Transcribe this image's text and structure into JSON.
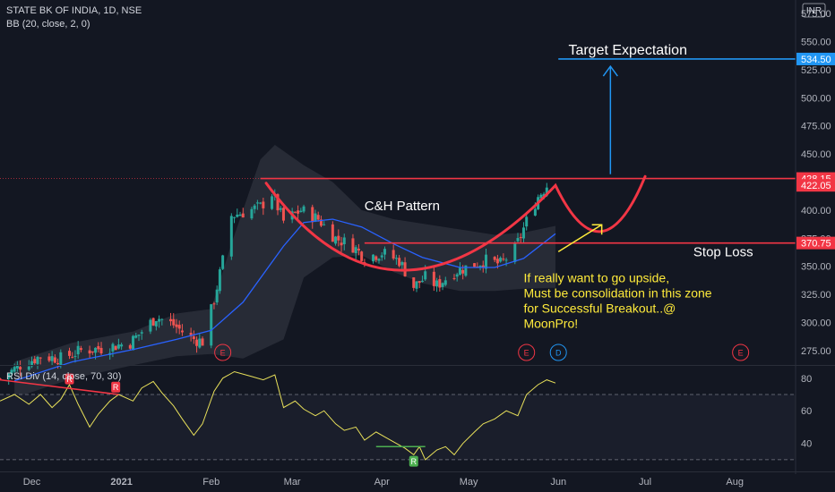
{
  "header": {
    "symbol": "STATE BK OF INDIA, 1D, NSE",
    "indicator": "BB (20, close, 2, 0)",
    "currency": "INR",
    "rsi_label": "RSI Div (14, close, 70, 30)"
  },
  "colors": {
    "background": "#131722",
    "up": "#26a69a",
    "down": "#ef5350",
    "bb_band": "#2a2e39",
    "bb_basis": "#2962ff",
    "pattern": "#f23645",
    "target": "#2196f3",
    "note": "#ffeb3b",
    "rsi": "#e8e05a"
  },
  "annotations": {
    "target": "Target Expectation",
    "pattern": "C&H Pattern",
    "stop": "Stop Loss",
    "note": [
      "If really want to go upside,",
      "Must be consolidation in this zone",
      "for Successful Breakout..@",
      "MoonPro!"
    ]
  },
  "events": [
    {
      "date": "2021-02-05",
      "label": "E"
    },
    {
      "date": "2021-05-21",
      "label": "E"
    },
    {
      "date": "2021-06-01",
      "label": "D"
    },
    {
      "date": "2021-08-03",
      "label": "E"
    }
  ],
  "rsi_signals": [
    {
      "date": "2020-12-14",
      "label": "R",
      "type": "bear"
    },
    {
      "date": "2020-12-30",
      "label": "R",
      "type": "bear"
    },
    {
      "date": "2021-04-12",
      "label": "R",
      "type": "bull"
    }
  ],
  "chart_data": {
    "type": "candlestick",
    "price_axis": {
      "ticks": [
        "575.00",
        "550.00",
        "525.00",
        "500.00",
        "475.00",
        "450.00",
        "425.00",
        "400.00",
        "375.00",
        "350.00",
        "325.00",
        "300.00",
        "275.00"
      ],
      "ylim": [
        263,
        587
      ]
    },
    "price_labels": [
      {
        "value": 534.5,
        "text": "534.50",
        "color": "#2196f3"
      },
      {
        "value": 428.15,
        "text": "428.15",
        "color": "#f23645"
      },
      {
        "value": 422.05,
        "text": "422.05",
        "color": "#f23645"
      },
      {
        "value": 370.75,
        "text": "370.75",
        "color": "#f23645"
      }
    ],
    "levels": {
      "resistance": 428.15,
      "stop_loss": 370.75,
      "target": 534.5
    },
    "rsi_axis": {
      "ticks": [
        "80",
        "60",
        "40"
      ],
      "ylim": [
        25,
        87
      ],
      "overbought": 70,
      "oversold": 30
    },
    "x_ticks": [
      {
        "date": "2020-12-01",
        "label": "Dec"
      },
      {
        "date": "2021-01-01",
        "label": "2021"
      },
      {
        "date": "2021-02-01",
        "label": "Feb"
      },
      {
        "date": "2021-03-01",
        "label": "Mar"
      },
      {
        "date": "2021-04-01",
        "label": "Apr"
      },
      {
        "date": "2021-05-01",
        "label": "May"
      },
      {
        "date": "2021-06-01",
        "label": "Jun"
      },
      {
        "date": "2021-07-01",
        "label": "Jul"
      },
      {
        "date": "2021-08-01",
        "label": "Aug"
      }
    ],
    "x_range": [
      "2020-11-20",
      "2021-08-22"
    ],
    "close_path": [
      [
        "2020-11-20",
        250
      ],
      [
        "2020-11-27",
        262
      ],
      [
        "2020-12-04",
        270
      ],
      [
        "2020-12-11",
        268
      ],
      [
        "2020-12-18",
        275
      ],
      [
        "2020-12-25",
        277
      ],
      [
        "2021-01-04",
        282
      ],
      [
        "2021-01-08",
        292
      ],
      [
        "2021-01-13",
        305
      ],
      [
        "2021-01-19",
        298
      ],
      [
        "2021-01-25",
        286
      ],
      [
        "2021-01-29",
        283
      ],
      [
        "2021-02-02",
        320
      ],
      [
        "2021-02-05",
        355
      ],
      [
        "2021-02-08",
        395
      ],
      [
        "2021-02-12",
        398
      ],
      [
        "2021-02-18",
        403
      ],
      [
        "2021-02-22",
        415
      ],
      [
        "2021-02-26",
        390
      ],
      [
        "2021-03-04",
        400
      ],
      [
        "2021-03-10",
        392
      ],
      [
        "2021-03-16",
        375
      ],
      [
        "2021-03-22",
        368
      ],
      [
        "2021-03-26",
        358
      ],
      [
        "2021-04-01",
        362
      ],
      [
        "2021-04-07",
        355
      ],
      [
        "2021-04-12",
        332
      ],
      [
        "2021-04-16",
        340
      ],
      [
        "2021-04-20",
        333
      ],
      [
        "2021-04-26",
        345
      ],
      [
        "2021-05-03",
        352
      ],
      [
        "2021-05-07",
        355
      ],
      [
        "2021-05-12",
        352
      ],
      [
        "2021-05-17",
        365
      ],
      [
        "2021-05-21",
        390
      ],
      [
        "2021-05-25",
        412
      ],
      [
        "2021-05-28",
        422
      ]
    ],
    "bb_basis_path": [
      [
        "2020-11-25",
        248
      ],
      [
        "2020-12-15",
        265
      ],
      [
        "2021-01-05",
        276
      ],
      [
        "2021-01-20",
        285
      ],
      [
        "2021-02-01",
        293
      ],
      [
        "2021-02-12",
        318
      ],
      [
        "2021-02-26",
        368
      ],
      [
        "2021-03-05",
        389
      ],
      [
        "2021-03-15",
        392
      ],
      [
        "2021-03-25",
        385
      ],
      [
        "2021-04-05",
        370
      ],
      [
        "2021-04-15",
        358
      ],
      [
        "2021-04-28",
        349
      ],
      [
        "2021-05-10",
        349
      ],
      [
        "2021-05-20",
        357
      ],
      [
        "2021-05-31",
        379
      ]
    ],
    "bb_upper_path": [
      [
        "2020-11-25",
        265
      ],
      [
        "2020-12-15",
        282
      ],
      [
        "2021-01-05",
        292
      ],
      [
        "2021-01-20",
        308
      ],
      [
        "2021-02-01",
        312
      ],
      [
        "2021-02-08",
        370
      ],
      [
        "2021-02-18",
        445
      ],
      [
        "2021-02-23",
        458
      ],
      [
        "2021-03-05",
        440
      ],
      [
        "2021-03-15",
        425
      ],
      [
        "2021-03-25",
        400
      ],
      [
        "2021-04-05",
        392
      ],
      [
        "2021-04-20",
        386
      ],
      [
        "2021-05-10",
        378
      ],
      [
        "2021-05-20",
        380
      ],
      [
        "2021-05-31",
        386
      ]
    ],
    "bb_lower_path": [
      [
        "2020-11-25",
        233
      ],
      [
        "2020-12-15",
        250
      ],
      [
        "2021-01-05",
        262
      ],
      [
        "2021-01-20",
        270
      ],
      [
        "2021-02-01",
        272
      ],
      [
        "2021-02-12",
        268
      ],
      [
        "2021-02-26",
        285
      ],
      [
        "2021-03-05",
        340
      ],
      [
        "2021-03-15",
        358
      ],
      [
        "2021-03-25",
        360
      ],
      [
        "2021-04-05",
        345
      ],
      [
        "2021-04-15",
        335
      ],
      [
        "2021-04-28",
        328
      ],
      [
        "2021-05-10",
        328
      ],
      [
        "2021-05-20",
        330
      ],
      [
        "2021-05-31",
        331
      ]
    ],
    "rsi_path": [
      [
        "2020-11-20",
        66
      ],
      [
        "2020-11-25",
        70
      ],
      [
        "2020-11-30",
        64
      ],
      [
        "2020-12-04",
        70
      ],
      [
        "2020-12-08",
        62
      ],
      [
        "2020-12-11",
        67
      ],
      [
        "2020-12-14",
        76
      ],
      [
        "2020-12-17",
        64
      ],
      [
        "2020-12-21",
        50
      ],
      [
        "2020-12-24",
        58
      ],
      [
        "2020-12-28",
        66
      ],
      [
        "2020-12-31",
        70
      ],
      [
        "2021-01-05",
        66
      ],
      [
        "2021-01-08",
        74
      ],
      [
        "2021-01-12",
        78
      ],
      [
        "2021-01-15",
        71
      ],
      [
        "2021-01-19",
        63
      ],
      [
        "2021-01-22",
        55
      ],
      [
        "2021-01-26",
        45
      ],
      [
        "2021-01-29",
        52
      ],
      [
        "2021-02-02",
        72
      ],
      [
        "2021-02-05",
        80
      ],
      [
        "2021-02-09",
        84
      ],
      [
        "2021-02-15",
        81
      ],
      [
        "2021-02-19",
        79
      ],
      [
        "2021-02-23",
        82
      ],
      [
        "2021-02-26",
        62
      ],
      [
        "2021-03-02",
        66
      ],
      [
        "2021-03-05",
        61
      ],
      [
        "2021-03-09",
        57
      ],
      [
        "2021-03-12",
        60
      ],
      [
        "2021-03-16",
        52
      ],
      [
        "2021-03-19",
        48
      ],
      [
        "2021-03-23",
        50
      ],
      [
        "2021-03-26",
        42
      ],
      [
        "2021-03-30",
        47
      ],
      [
        "2021-04-02",
        44
      ],
      [
        "2021-04-06",
        40
      ],
      [
        "2021-04-09",
        37
      ],
      [
        "2021-04-12",
        33
      ],
      [
        "2021-04-14",
        38
      ],
      [
        "2021-04-16",
        30
      ],
      [
        "2021-04-20",
        36
      ],
      [
        "2021-04-23",
        38
      ],
      [
        "2021-04-26",
        33
      ],
      [
        "2021-04-29",
        40
      ],
      [
        "2021-05-03",
        47
      ],
      [
        "2021-05-06",
        52
      ],
      [
        "2021-05-10",
        55
      ],
      [
        "2021-05-14",
        60
      ],
      [
        "2021-05-18",
        57
      ],
      [
        "2021-05-21",
        70
      ],
      [
        "2021-05-25",
        76
      ],
      [
        "2021-05-28",
        79
      ],
      [
        "2021-05-31",
        77
      ]
    ]
  }
}
